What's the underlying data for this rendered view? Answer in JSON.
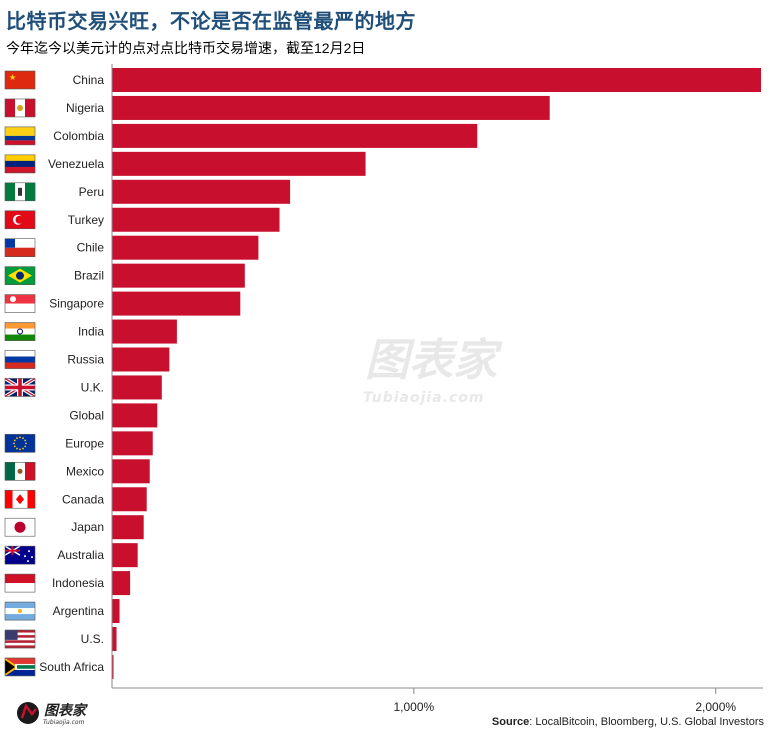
{
  "title": "比特币交易兴旺，不论是否在监管最严的地方",
  "subtitle": "今年迄今以美元计的点对点比特币交易增速，截至12月2日",
  "source_label": "Source",
  "source_text": ": LocalBitcoin, Bloomberg, U.S. Global Investors",
  "watermark": {
    "text": "图表家",
    "subtext": "Tubiaojia.com"
  },
  "logo": {
    "text": "图表家",
    "subtext": "Tubiaojia.com"
  },
  "colors": {
    "bar": "#c8102e",
    "title": "#1f4e79",
    "axis": "#888888"
  },
  "chart_data": {
    "type": "bar",
    "orientation": "horizontal",
    "title": "比特币交易兴旺，不论是否在监管最严的地方",
    "xlabel": "",
    "ylabel": "",
    "xlim": [
      0,
      2150
    ],
    "x_ticks": [
      1000,
      2000
    ],
    "x_tick_labels": [
      "1,000%",
      "2,000%"
    ],
    "grid": false,
    "categories": [
      "China",
      "Nigeria",
      "Colombia",
      "Venezuela",
      "Peru",
      "Turkey",
      "Chile",
      "Brazil",
      "Singapore",
      "India",
      "Russia",
      "U.K.",
      "Global",
      "Europe",
      "Mexico",
      "Canada",
      "Japan",
      "Australia",
      "Indonesia",
      "Argentina",
      "U.S.",
      "South Africa"
    ],
    "flags": [
      "china-flag-icon",
      "nigeria-flag-icon",
      "colombia-flag-icon",
      "venezuela-flag-icon",
      "peru-flag-icon",
      "turkey-flag-icon",
      "chile-flag-icon",
      "brazil-flag-icon",
      "singapore-flag-icon",
      "india-flag-icon",
      "russia-flag-icon",
      "uk-flag-icon",
      "",
      "eu-flag-icon",
      "mexico-flag-icon",
      "canada-flag-icon",
      "japan-flag-icon",
      "australia-flag-icon",
      "indonesia-flag-icon",
      "argentina-flag-icon",
      "us-flag-icon",
      "south-africa-flag-icon"
    ],
    "values": [
      2150,
      1450,
      1210,
      840,
      590,
      555,
      485,
      440,
      425,
      215,
      190,
      165,
      150,
      135,
      125,
      115,
      105,
      85,
      60,
      25,
      15,
      5
    ]
  }
}
